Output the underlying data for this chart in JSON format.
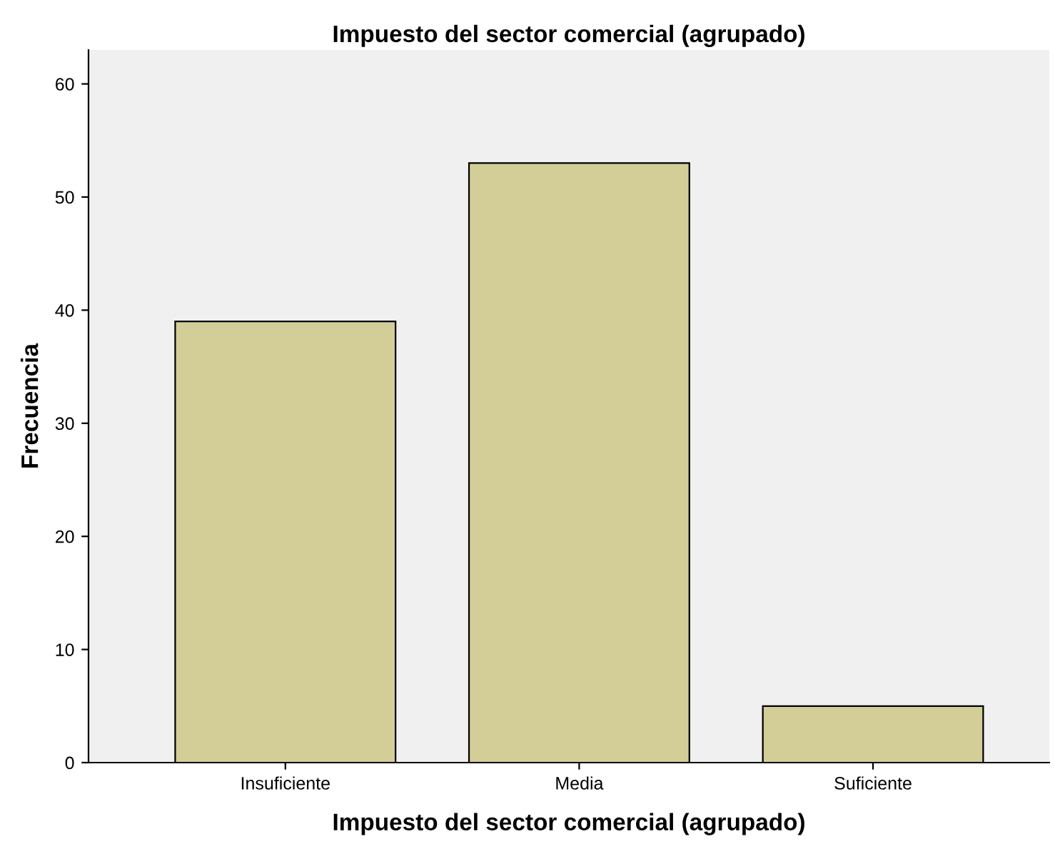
{
  "chart_data": {
    "type": "bar",
    "title": "Impuesto del sector comercial (agrupado)",
    "xlabel": "Impuesto del sector comercial (agrupado)",
    "ylabel": "Frecuencia",
    "categories": [
      "Insuficiente",
      "Media",
      "Suficiente"
    ],
    "values": [
      39,
      53,
      5
    ],
    "color": "#d3ce97",
    "ylim": [
      0,
      63
    ],
    "yticks": [
      0,
      10,
      20,
      30,
      40,
      50,
      60
    ],
    "grid": false,
    "legend": false
  }
}
